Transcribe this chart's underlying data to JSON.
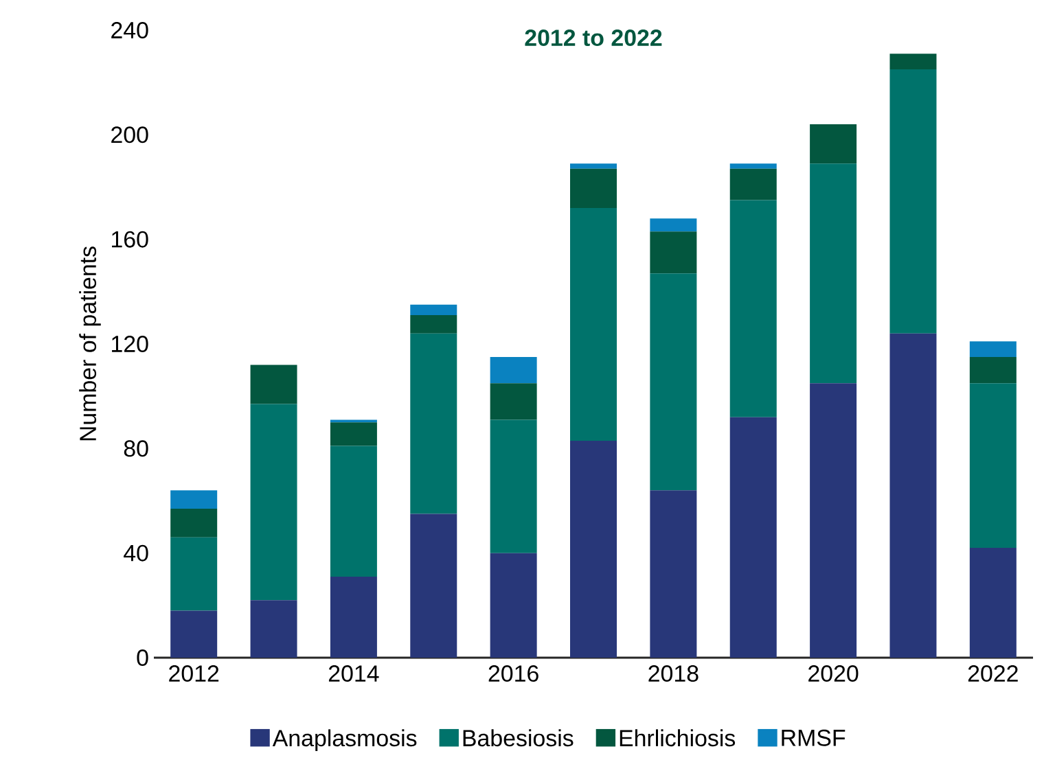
{
  "chart_data": {
    "type": "bar",
    "stacked": true,
    "title": "2012 to 2022",
    "ylabel": "Number of patients",
    "categories": [
      "2012",
      null,
      "2014",
      null,
      "2016",
      null,
      "2018",
      null,
      "2020",
      null,
      "2022"
    ],
    "series": [
      {
        "name": "Anaplasmosis",
        "color": "#283779",
        "values": [
          18,
          22,
          31,
          55,
          40,
          83,
          64,
          92,
          105,
          124,
          42
        ]
      },
      {
        "name": "Babesiosis",
        "color": "#00736b",
        "values": [
          28,
          75,
          50,
          69,
          51,
          89,
          83,
          83,
          84,
          101,
          63
        ]
      },
      {
        "name": "Ehrlichiosis",
        "color": "#03573f",
        "values": [
          11,
          15,
          9,
          7,
          14,
          15,
          16,
          12,
          15,
          6,
          10
        ]
      },
      {
        "name": "RMSF",
        "color": "#0a82c0",
        "values": [
          7,
          0,
          1,
          4,
          10,
          2,
          5,
          2,
          0,
          0,
          6
        ]
      }
    ],
    "ylim": [
      0,
      240
    ],
    "yticks": [
      0,
      40,
      80,
      120,
      160,
      200,
      240
    ],
    "grid": false,
    "legend": "bottom"
  }
}
